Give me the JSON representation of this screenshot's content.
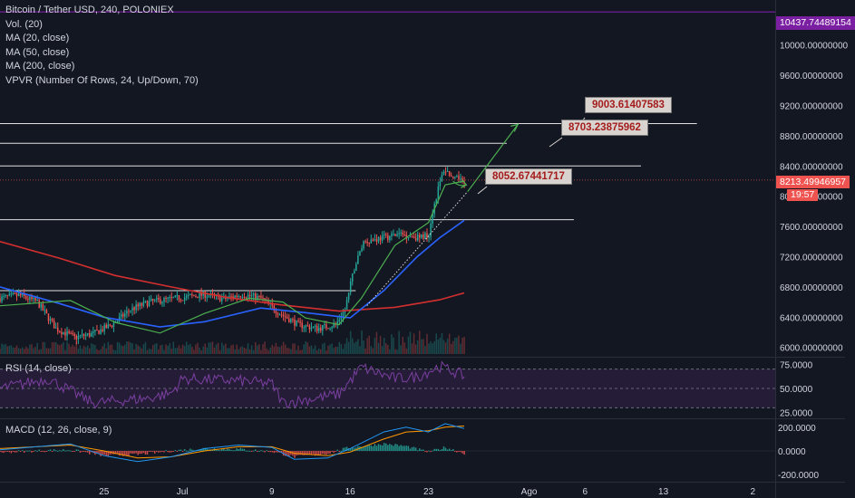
{
  "legend": {
    "symbol": "Bitcoin / Tether USD, 240, POLONIEX",
    "volume": "Vol. (20)",
    "ma20": "MA (20, close)",
    "ma50": "MA (50, close)",
    "ma200": "MA (200, close)",
    "vpvr": "VPVR (Number Of Rows, 24, Up/Down, 70)"
  },
  "price_labels": {
    "top_level": "10437.74489154",
    "last_price": "8213.49946957",
    "countdown": "19:57"
  },
  "callouts": {
    "c1": "9003.61407583",
    "c2": "8703.23875962",
    "c3": "8052.67441717"
  },
  "rsi": {
    "title": "RSI (14, close)"
  },
  "macd": {
    "title": "MACD (12, 26, close, 9)"
  },
  "colors": {
    "background": "#131722",
    "up": "#26a69a",
    "down": "#ef5350",
    "ma20": "#4caf50",
    "ma50": "#2962ff",
    "ma200": "#d32f2f",
    "top_level": "#7b1fa2",
    "rsi": "#7b3fa0",
    "macd": "#2196f3",
    "signal": "#ff9800"
  },
  "chart_data": {
    "type": "candlestick",
    "price_axis": {
      "ticks": [
        6000,
        6400,
        6800,
        7200,
        7600,
        8000,
        8400,
        8800,
        9200,
        9600,
        10000
      ],
      "tick_labels": [
        "6000.00000000",
        "6400.00000000",
        "6800.00000000",
        "7200.00000000",
        "7600.00000000",
        "8000.00000000",
        "8400.00000000",
        "8800.00000000",
        "9200.00000000",
        "9600.00000000",
        "10000.00000000"
      ],
      "ylim": [
        5900,
        10500
      ]
    },
    "rsi_axis": {
      "ticks": [
        25,
        50,
        75
      ],
      "tick_labels": [
        "25.0000",
        "50.0000",
        "75.0000"
      ],
      "ylim": [
        20,
        80
      ]
    },
    "macd_axis": {
      "ticks": [
        -200,
        0,
        200
      ],
      "tick_labels": [
        "-200.0000",
        "0.0000",
        "200.0000"
      ],
      "ylim": [
        -260,
        260
      ]
    },
    "time_axis": {
      "ticks": [
        {
          "label": "25",
          "day": -6
        },
        {
          "label": "Jul",
          "day": 1
        },
        {
          "label": "9",
          "day": 9
        },
        {
          "label": "16",
          "day": 16
        },
        {
          "label": "23",
          "day": 23
        },
        {
          "label": "Ago",
          "day": 32
        },
        {
          "label": "6",
          "day": 37
        },
        {
          "label": "13",
          "day": 44
        },
        {
          "label": "2",
          "day": 52
        }
      ],
      "xlim": [
        -15.3,
        54
      ]
    },
    "horizontal_levels": [
      {
        "price": 10437.74,
        "color": "#7b1fa2"
      },
      {
        "price": 8960,
        "x_end_day": 47,
        "color": "#e0e0e0"
      },
      {
        "price": 8700,
        "x_end_day": 30,
        "color": "#e0e0e0"
      },
      {
        "price": 8400,
        "x_end_day": 42,
        "color": "#e0e0e0"
      },
      {
        "price": 7690,
        "x_end_day": 36,
        "color": "#e0e0e0"
      },
      {
        "price": 6750,
        "x_end_day": 16.5,
        "color": "#e0e0e0"
      }
    ],
    "candles": {
      "start_day": -15.3,
      "step_days": 0.1667,
      "anchors": [
        [
          0,
          6650
        ],
        [
          10,
          6690
        ],
        [
          20,
          6600
        ],
        [
          30,
          6250
        ],
        [
          40,
          6130
        ],
        [
          50,
          6180
        ],
        [
          60,
          6300
        ],
        [
          70,
          6500
        ],
        [
          80,
          6600
        ],
        [
          95,
          6650
        ],
        [
          110,
          6700
        ],
        [
          120,
          6640
        ],
        [
          130,
          6700
        ],
        [
          140,
          6650
        ],
        [
          150,
          6450
        ],
        [
          160,
          6300
        ],
        [
          170,
          6250
        ],
        [
          180,
          6300
        ],
        [
          185,
          6500
        ],
        [
          190,
          7050
        ],
        [
          195,
          7400
        ],
        [
          205,
          7450
        ],
        [
          215,
          7500
        ],
        [
          225,
          7450
        ],
        [
          230,
          7500
        ],
        [
          232,
          7800
        ],
        [
          235,
          8100
        ],
        [
          238,
          8350
        ],
        [
          241,
          8300
        ],
        [
          243,
          8200
        ],
        [
          247,
          8250
        ],
        [
          249,
          8213
        ]
      ]
    },
    "ma20": [
      [
        -15.3,
        6550
      ],
      [
        -9,
        6620
      ],
      [
        -5,
        6330
      ],
      [
        -1,
        6190
      ],
      [
        3,
        6450
      ],
      [
        7,
        6650
      ],
      [
        10,
        6600
      ],
      [
        12,
        6390
      ],
      [
        15,
        6300
      ],
      [
        17,
        6650
      ],
      [
        20,
        7350
      ],
      [
        23,
        7650
      ],
      [
        24.5,
        8150
      ],
      [
        26.2,
        8200
      ]
    ],
    "ma50": [
      [
        -15.3,
        6800
      ],
      [
        -10,
        6580
      ],
      [
        -6,
        6400
      ],
      [
        -1,
        6270
      ],
      [
        3,
        6340
      ],
      [
        8,
        6520
      ],
      [
        12,
        6460
      ],
      [
        16,
        6390
      ],
      [
        19,
        6750
      ],
      [
        22,
        7200
      ],
      [
        24,
        7450
      ],
      [
        26.2,
        7680
      ]
    ],
    "ma200": [
      [
        -15.3,
        7400
      ],
      [
        -10,
        7180
      ],
      [
        -5,
        6950
      ],
      [
        0,
        6800
      ],
      [
        5,
        6660
      ],
      [
        10,
        6560
      ],
      [
        15,
        6480
      ],
      [
        20,
        6530
      ],
      [
        24,
        6630
      ],
      [
        26.2,
        6720
      ]
    ],
    "projection_dotted": [
      [
        17.5,
        6550
      ],
      [
        26.5,
        8060
      ]
    ],
    "projection_solid": [
      [
        26.5,
        8060
      ],
      [
        31,
        8950
      ]
    ],
    "rsi_anchors": [
      [
        -15.3,
        50
      ],
      [
        -11,
        60
      ],
      [
        -7,
        35
      ],
      [
        -2,
        40
      ],
      [
        0,
        45
      ],
      [
        1,
        60
      ],
      [
        6,
        58
      ],
      [
        9,
        55
      ],
      [
        10,
        35
      ],
      [
        13,
        40
      ],
      [
        15,
        44
      ],
      [
        17,
        72
      ],
      [
        20,
        60
      ],
      [
        22,
        62
      ],
      [
        24,
        73
      ],
      [
        26.2,
        63
      ]
    ],
    "macd_line": [
      [
        -15.3,
        10
      ],
      [
        -9,
        60
      ],
      [
        -6,
        -40
      ],
      [
        -3,
        -90
      ],
      [
        0,
        -50
      ],
      [
        3,
        20
      ],
      [
        6,
        50
      ],
      [
        9,
        30
      ],
      [
        11,
        -70
      ],
      [
        14,
        -60
      ],
      [
        16,
        20
      ],
      [
        19,
        160
      ],
      [
        21,
        200
      ],
      [
        23,
        160
      ],
      [
        24.5,
        230
      ],
      [
        26.2,
        190
      ]
    ],
    "signal_line": [
      [
        -15.3,
        20
      ],
      [
        -9,
        50
      ],
      [
        -6,
        0
      ],
      [
        -3,
        -60
      ],
      [
        0,
        -50
      ],
      [
        3,
        0
      ],
      [
        6,
        35
      ],
      [
        9,
        35
      ],
      [
        11,
        -20
      ],
      [
        14,
        -40
      ],
      [
        16,
        -10
      ],
      [
        19,
        100
      ],
      [
        21,
        160
      ],
      [
        23,
        170
      ],
      [
        24.5,
        200
      ],
      [
        26.2,
        210
      ]
    ]
  }
}
